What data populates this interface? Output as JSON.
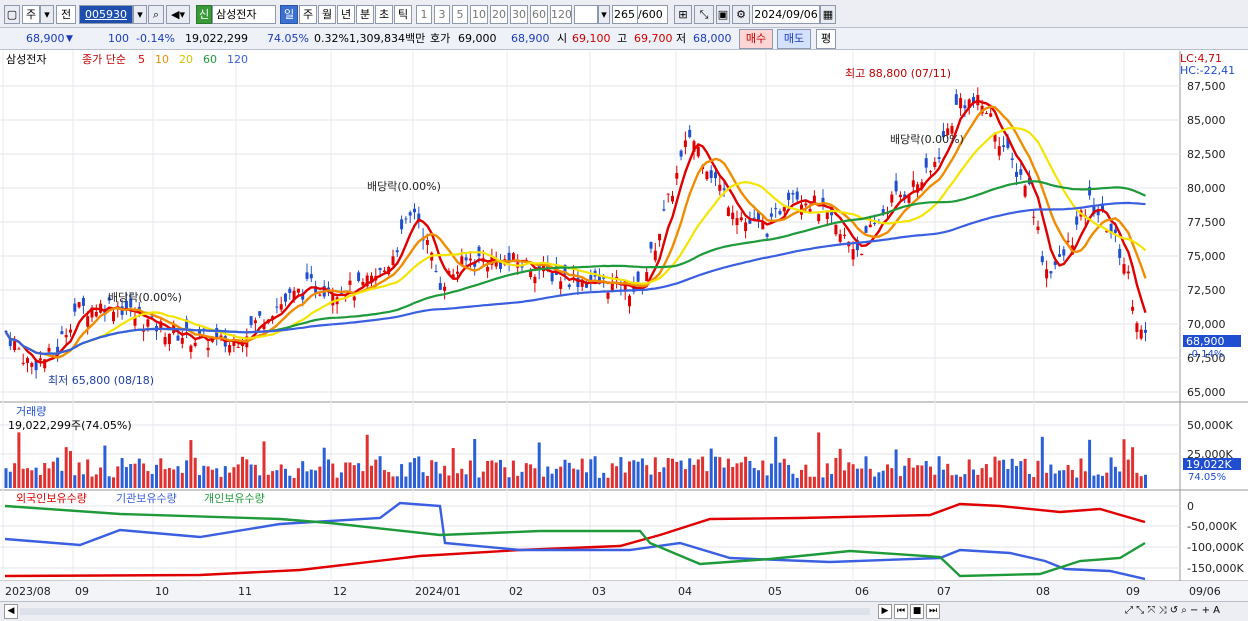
{
  "toolbar": {
    "type_label": "주",
    "prev_label": "전",
    "code": "005930",
    "market_badge": "신",
    "stock_name": "삼성전자",
    "periods": [
      "일",
      "주",
      "월",
      "년",
      "분",
      "초",
      "틱"
    ],
    "active_period": "일",
    "intervals": [
      "1",
      "3",
      "5",
      "10",
      "20",
      "30",
      "60",
      "120"
    ],
    "count": "265",
    "count_total": "/600",
    "date": "2024/09/06"
  },
  "info": {
    "price": "68,900",
    "change": "100",
    "change_pct": "-0.14%",
    "volume": "19,022,299",
    "vol_ratio": "74.05%",
    "turnover": "0.32%",
    "amount": "1,309,834백만",
    "quote_label": "호가",
    "quote": "69,000",
    "quote2": "68,900",
    "open_label": "시",
    "open": "69,100",
    "high_label": "고",
    "high": "69,700",
    "low_label": "저",
    "low": "68,000",
    "buy": "매수",
    "sell": "매도",
    "eval": "평"
  },
  "price_panel": {
    "name": "삼성전자",
    "legend_title": "종가 단순",
    "ma_periods": [
      "5",
      "10",
      "20",
      "60",
      "120"
    ],
    "ma_colors": [
      "#e00000",
      "#f08c00",
      "#f5e400",
      "#1e9a3a",
      "#3a5fe0"
    ],
    "lc": "LC:4,71",
    "hc": "HC:-22,41",
    "high_note": "최고 88,800 (07/11)",
    "low_note": "최저 65,800 (08/18)",
    "div_notes": [
      "배당락(0.00%)",
      "배당락(0.00%)",
      "배당락(0.00%)"
    ],
    "current_price": "68,900",
    "current_pct": "-0.14%",
    "axis": [
      "87,500",
      "85,000",
      "82,500",
      "80,000",
      "77,500",
      "75,000",
      "72,500",
      "70,000",
      "67,500",
      "65,000"
    ]
  },
  "volume_panel": {
    "title": "거래량",
    "value": "19,022,299주(74.05%)",
    "axis": [
      "50,000K",
      "25,000K"
    ],
    "current": "19,022K",
    "current_pct": "74.05%"
  },
  "holdings_panel": {
    "series": [
      "외국인보유수량",
      "기관보유수량",
      "개인보유수량"
    ],
    "colors": [
      "#e00000",
      "#3a5fe0",
      "#1e9a3a"
    ],
    "axis": [
      "0",
      "-50,000K",
      "-100,000K",
      "-150,000K"
    ]
  },
  "x_axis": [
    "2023/08",
    "09",
    "10",
    "11",
    "12",
    "2024/01",
    "02",
    "03",
    "04",
    "05",
    "06",
    "07",
    "08",
    "09",
    "09/06"
  ]
}
